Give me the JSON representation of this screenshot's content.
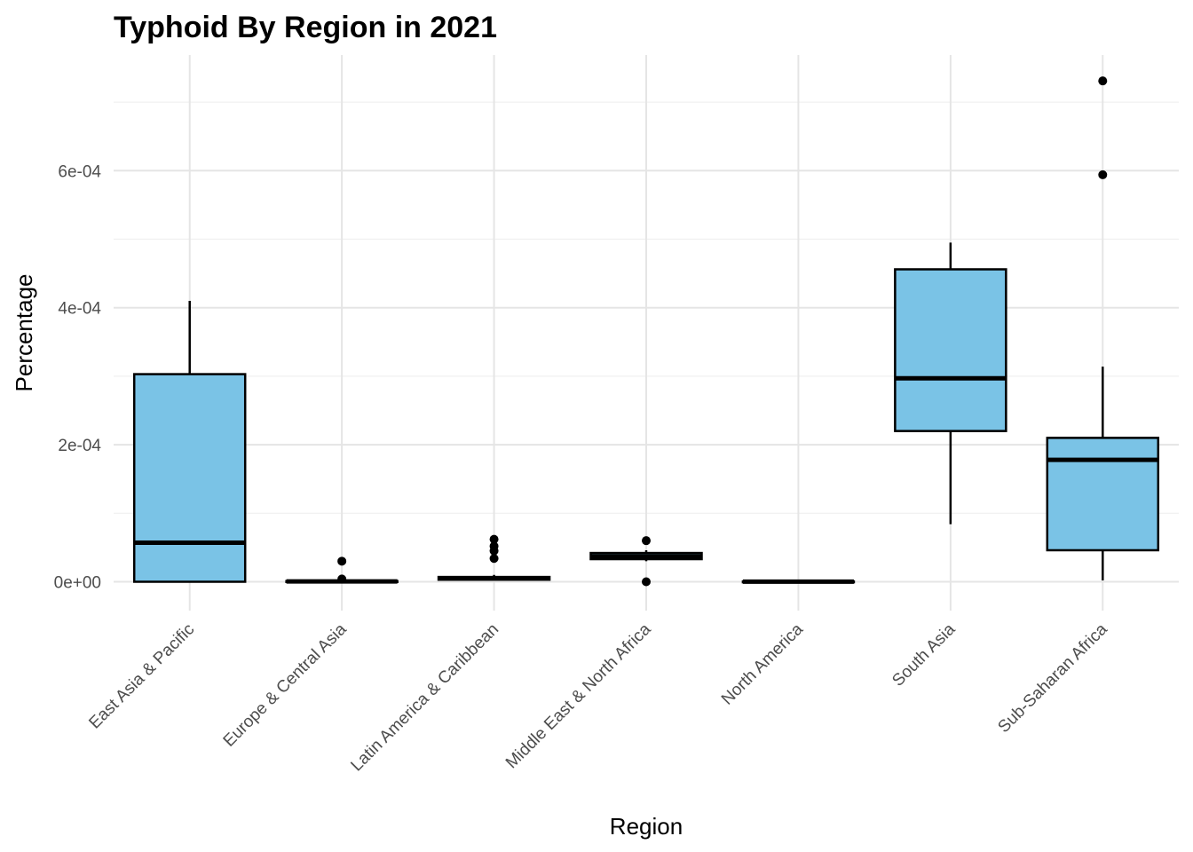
{
  "chart_data": {
    "type": "boxplot",
    "title": "Typhoid By Region in 2021",
    "xlabel": "Region",
    "ylabel": "Percentage",
    "ylim": [
      -2e-05,
      0.000765
    ],
    "yticks": [
      0,
      0.0002,
      0.0004,
      0.0006
    ],
    "ytick_labels": [
      "0e+00",
      "2e-04",
      "4e-04",
      "6e-04"
    ],
    "grid": true,
    "box_color": "#7ac3e6",
    "categories": [
      "East Asia & Pacific",
      "Europe & Central Asia",
      "Latin America & Caribbean",
      "Middle East & North Africa",
      "North America",
      "South Asia",
      "Sub-Saharan Africa"
    ],
    "boxes": [
      {
        "whisker_low": 0.0,
        "q1": 0.0,
        "median": 5.7e-05,
        "q3": 0.000303,
        "whisker_high": 0.00041,
        "outliers": []
      },
      {
        "whisker_low": 0.0,
        "q1": 0.0,
        "median": 5e-07,
        "q3": 1e-06,
        "whisker_high": 2e-06,
        "outliers": [
          3e-05,
          4e-06
        ]
      },
      {
        "whisker_low": 2e-06,
        "q1": 3e-06,
        "median": 5e-06,
        "q3": 7e-06,
        "whisker_high": 1e-05,
        "outliers": [
          6.2e-05,
          5.2e-05,
          4.5e-05,
          3.4e-05
        ]
      },
      {
        "whisker_low": 3e-05,
        "q1": 3.3e-05,
        "median": 3.7e-05,
        "q3": 4.2e-05,
        "whisker_high": 4.6e-05,
        "outliers": [
          6e-05,
          0.0
        ]
      },
      {
        "whisker_low": 0.0,
        "q1": 0.0,
        "median": 2e-07,
        "q3": 5e-07,
        "whisker_high": 1e-06,
        "outliers": []
      },
      {
        "whisker_low": 8.4e-05,
        "q1": 0.00022,
        "median": 0.000297,
        "q3": 0.000456,
        "whisker_high": 0.000495,
        "outliers": []
      },
      {
        "whisker_low": 2e-06,
        "q1": 4.6e-05,
        "median": 0.000178,
        "q3": 0.00021,
        "whisker_high": 0.000314,
        "outliers": [
          0.000731,
          0.000594
        ]
      }
    ]
  }
}
